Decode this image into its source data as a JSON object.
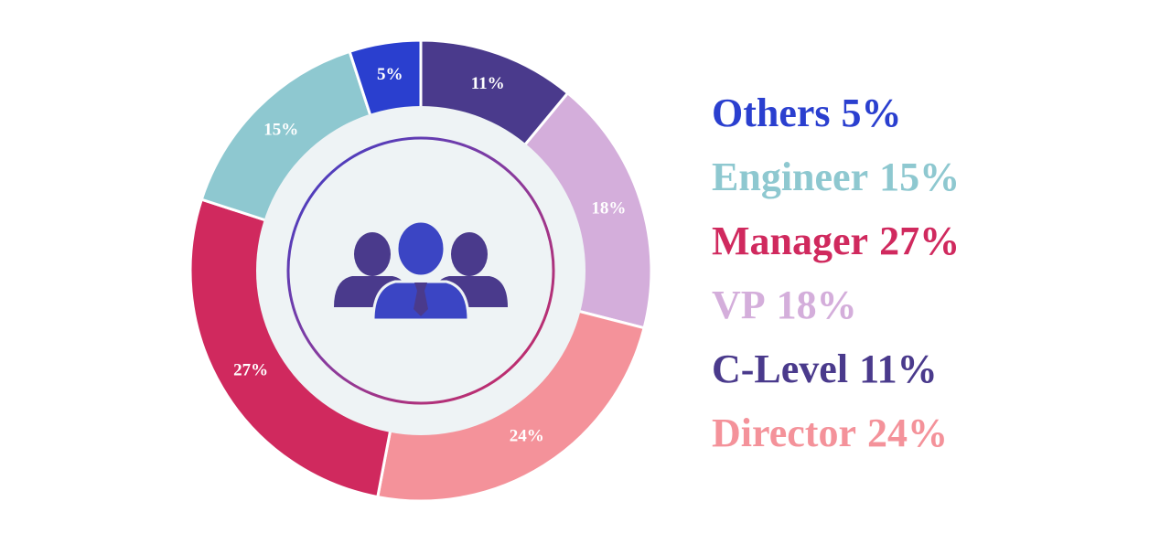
{
  "chart_data": {
    "type": "donut",
    "categories": [
      "C-Level",
      "VP",
      "Director",
      "Manager",
      "Engineer",
      "Others"
    ],
    "values": [
      11,
      18,
      24,
      27,
      15,
      5
    ],
    "value_labels": [
      "11%",
      "18%",
      "24%",
      "27%",
      "15%",
      "5%"
    ],
    "colors": [
      "#4a3a8c",
      "#d4aedb",
      "#f4929a",
      "#d0295e",
      "#8ec8d0",
      "#2a3fcf"
    ]
  }
}
